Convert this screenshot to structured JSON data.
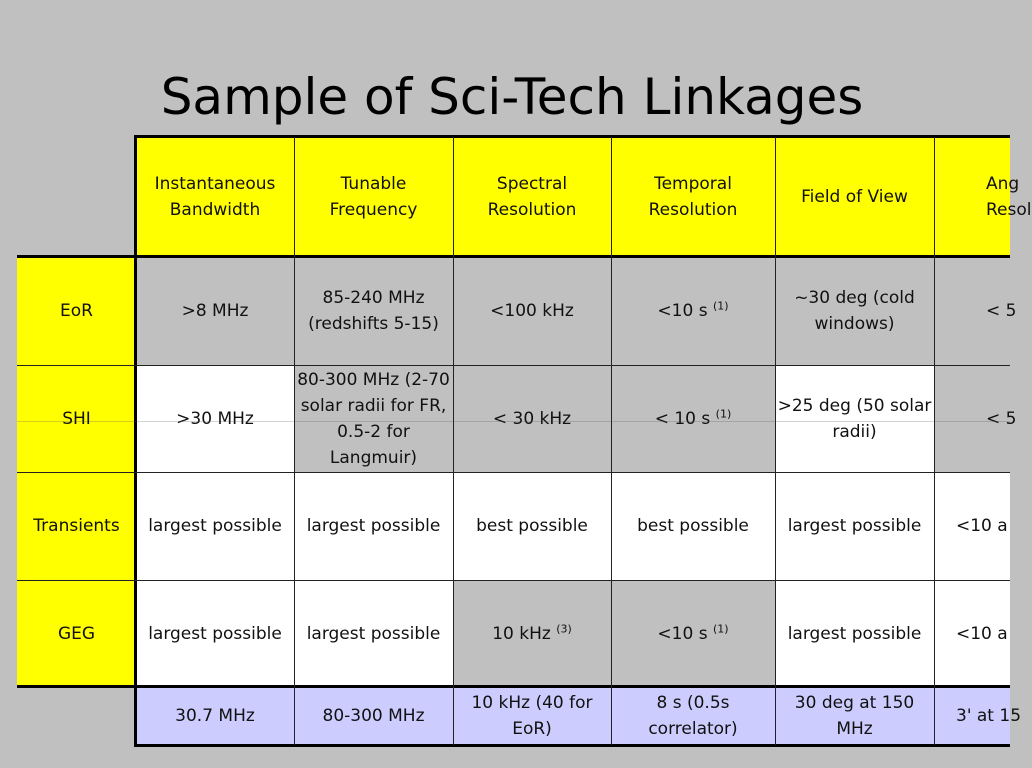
{
  "title": "Sample of Sci-Tech Linkages",
  "headers": {
    "instantaneous_bandwidth": "Instantaneous Bandwidth",
    "tunable_frequency": "Tunable Frequency",
    "spectral_resolution": "Spectral Resolution",
    "temporal_resolution": "Temporal Resolution",
    "field_of_view": "Field of View",
    "angular_resolution_partial": "Ang Resol"
  },
  "rows": {
    "eor": {
      "label": "EoR",
      "bandwidth": ">8 MHz",
      "frequency": "85-240 MHz (redshifts 5-15)",
      "spectral": "<100 kHz",
      "temporal": "<10 s",
      "temporal_note": "(1)",
      "fov": "~30 deg (cold windows)",
      "angular_partial": "< 5"
    },
    "shi": {
      "label": "SHI",
      "bandwidth": ">30 MHz",
      "frequency": "80-300 MHz (2-70 solar radii for FR, 0.5-2 for Langmuir)",
      "spectral": "< 30 kHz",
      "temporal": "< 10 s",
      "temporal_note": "(1)",
      "fov": ">25 deg (50 solar radii)",
      "angular_partial": "< 5"
    },
    "transients": {
      "label": "Transients",
      "bandwidth": "largest possible",
      "frequency": "largest possible",
      "spectral": "best possible",
      "temporal": "best possible",
      "fov": "largest possible",
      "angular_partial": "<10 a"
    },
    "geg": {
      "label": "GEG",
      "bandwidth": "largest possible",
      "frequency": "largest possible",
      "spectral": "10 kHz",
      "spectral_note": "(3)",
      "temporal": "<10 s",
      "temporal_note": "(1)",
      "fov": "largest possible",
      "angular_partial": "<10 a"
    }
  },
  "footer": {
    "bandwidth": "30.7 MHz",
    "frequency": "80-300 MHz",
    "spectral": "10 kHz (40 for EoR)",
    "temporal": "8 s (0.5s correlator)",
    "fov": "30 deg at 150 MHz",
    "angular_partial": "3' at 15"
  },
  "colors": {
    "background": "#c0c0c0",
    "header": "#ffff00",
    "gray_cell": "#c0c0c0",
    "white_cell": "#ffffff",
    "footer": "#ccccff"
  }
}
